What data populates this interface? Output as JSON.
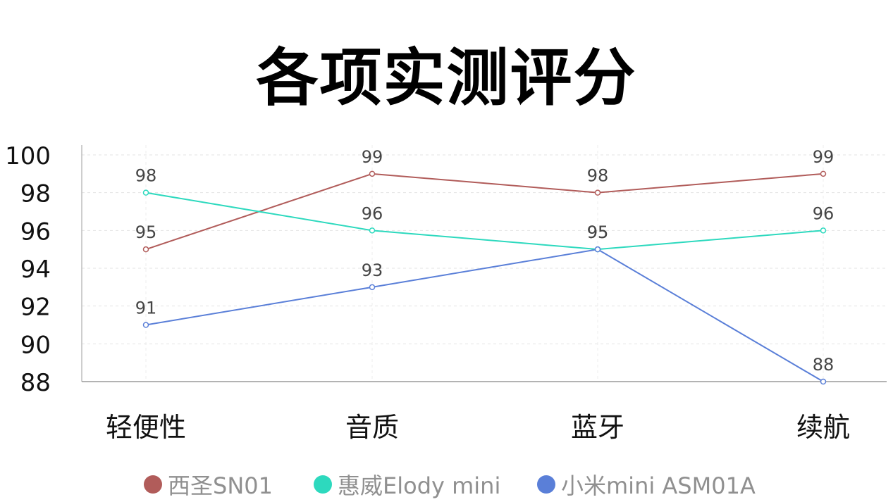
{
  "title": "各项实测评分",
  "chart_data": {
    "type": "line",
    "title": "各项实测评分",
    "categories": [
      "轻便性",
      "音质",
      "蓝牙",
      "续航"
    ],
    "series": [
      {
        "name": "西圣SN01",
        "values": [
          95,
          99,
          98,
          99
        ],
        "color": "#b15c5a"
      },
      {
        "name": "惠威Elody mini",
        "values": [
          98,
          96,
          95,
          96
        ],
        "color": "#2dd9be"
      },
      {
        "name": "小米mini ASM01A",
        "values": [
          91,
          93,
          95,
          88
        ],
        "color": "#5a7fd8"
      }
    ],
    "y_ticks": [
      "100",
      "98",
      "96",
      "94",
      "92",
      "90",
      "88"
    ],
    "ylim": [
      88,
      100
    ],
    "grid": true,
    "legend_position": "bottom"
  }
}
